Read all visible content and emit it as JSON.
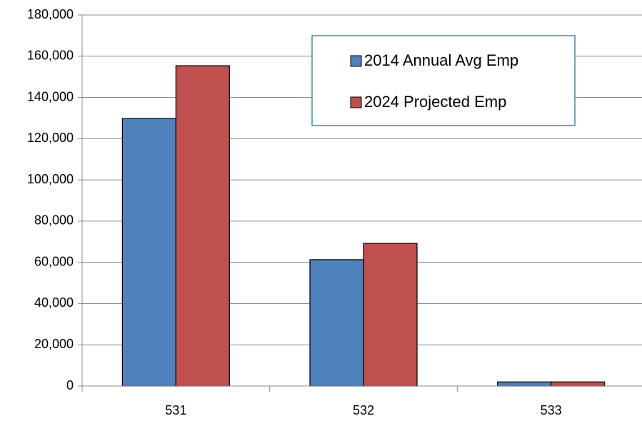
{
  "chart_data": {
    "type": "bar",
    "categories": [
      "531",
      "532",
      "533"
    ],
    "series": [
      {
        "name": "2014 Annual Avg Emp",
        "color": "#4f81bd",
        "values": [
          129800,
          61300,
          2000
        ]
      },
      {
        "name": "2024 Projected Emp",
        "color": "#c0504d",
        "values": [
          155400,
          69200,
          2000
        ]
      }
    ],
    "ylim": [
      0,
      180000
    ],
    "yticks": [
      0,
      {
        "value": 20000,
        "label": "20,000"
      },
      {
        "value": 40000,
        "label": "40,000"
      },
      {
        "value": 60000,
        "label": "60,000"
      },
      {
        "value": 80000,
        "label": "80,000"
      },
      {
        "value": 100000,
        "label": "100,000"
      },
      {
        "value": 120000,
        "label": "120,000"
      },
      {
        "value": 140000,
        "label": "140,000"
      },
      {
        "value": 160000,
        "label": "160,000"
      },
      {
        "value": 180000,
        "label": "180,000"
      }
    ],
    "grid": true,
    "legend": "top-right"
  }
}
